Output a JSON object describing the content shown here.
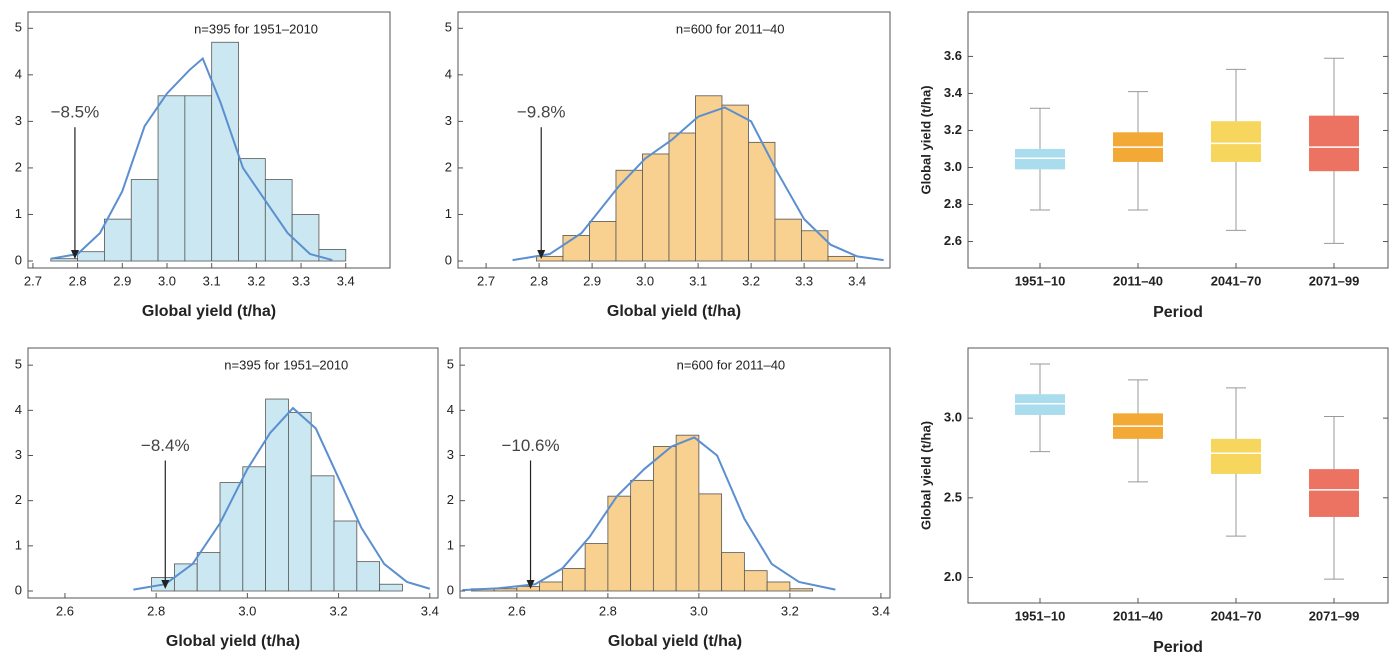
{
  "chart_data": [
    {
      "type": "histogram",
      "note": "n=395  for  1951–2010",
      "xlabel": "Global yield (t/ha)",
      "bins": [
        2.74,
        2.8,
        2.86,
        2.92,
        2.98,
        3.04,
        3.1,
        3.16,
        3.22,
        3.28,
        3.34,
        3.4
      ],
      "counts": [
        0.05,
        0.2,
        0.9,
        1.75,
        3.55,
        3.55,
        4.7,
        2.2,
        1.75,
        1.0,
        0.25
      ],
      "color": "#cbe8f2",
      "density": {
        "color": "#5b8fd0",
        "x": [
          2.74,
          2.8,
          2.85,
          2.9,
          2.95,
          3.0,
          3.05,
          3.08,
          3.12,
          3.17,
          3.22,
          3.27,
          3.32,
          3.37
        ],
        "values": [
          0.05,
          0.15,
          0.6,
          1.5,
          2.9,
          3.6,
          4.1,
          4.35,
          3.4,
          2.0,
          1.3,
          0.6,
          0.15,
          0.02
        ]
      },
      "annotation": {
        "text": "−8.5%",
        "x": 2.794
      },
      "xlim": [
        2.689,
        3.499
      ],
      "ylim": [
        -0.15,
        5.35
      ],
      "xticks": [
        2.7,
        2.8,
        2.9,
        {
          "value": 3,
          "label": "3.0"
        },
        3.1,
        3.2,
        3.3,
        3.4
      ],
      "yticks": [
        0,
        1,
        2,
        3,
        4,
        5
      ]
    },
    {
      "type": "histogram",
      "note": "n=600  for  2011–40",
      "xlabel": "Global yield (t/ha)",
      "bins": [
        2.795,
        2.845,
        2.895,
        2.945,
        2.995,
        3.045,
        3.095,
        3.145,
        3.195,
        3.245,
        3.295,
        3.345,
        3.395
      ],
      "counts": [
        0.1,
        0.55,
        0.85,
        1.95,
        2.3,
        2.75,
        3.55,
        3.35,
        2.55,
        0.9,
        0.65,
        0.1
      ],
      "color": "#f8d08f",
      "density": {
        "color": "#5b8fd0",
        "x": [
          2.75,
          2.82,
          2.88,
          2.95,
          3.0,
          3.05,
          3.1,
          3.15,
          3.2,
          3.25,
          3.3,
          3.35,
          3.4,
          3.45
        ],
        "values": [
          0.02,
          0.15,
          0.6,
          1.6,
          2.2,
          2.6,
          3.1,
          3.3,
          3.0,
          1.9,
          0.9,
          0.35,
          0.1,
          0.02
        ]
      },
      "annotation": {
        "text": "−9.8%",
        "x": 2.804
      },
      "xlim": [
        2.647,
        3.462
      ],
      "ylim": [
        -0.15,
        5.35
      ],
      "xticks": [
        2.7,
        2.8,
        2.9,
        {
          "value": 3,
          "label": "3.0"
        },
        3.1,
        3.2,
        3.3,
        3.4
      ],
      "yticks": [
        0,
        1,
        2,
        3,
        4,
        5
      ]
    },
    {
      "type": "box",
      "xlabel": "Period",
      "ylabel": "Global yield (t/ha)",
      "categories": [
        "1951–10",
        "2011–40",
        "2041–70",
        "2071–99"
      ],
      "colors": [
        "#a9dcec",
        "#f2a935",
        "#f6d65c",
        "#ec7262"
      ],
      "min": [
        2.77,
        2.77,
        2.66,
        2.59
      ],
      "q1": [
        2.99,
        3.03,
        3.03,
        2.98
      ],
      "median": [
        3.05,
        3.11,
        3.13,
        3.11
      ],
      "q3": [
        3.1,
        3.19,
        3.25,
        3.28
      ],
      "max": [
        3.32,
        3.41,
        3.53,
        3.59
      ],
      "ylim": [
        2.457,
        3.84
      ],
      "yticks": [
        2.6,
        2.8,
        {
          "value": 3,
          "label": "3.0"
        },
        3.2,
        3.4,
        3.6
      ]
    },
    {
      "type": "histogram",
      "note": "n=395  for  1951–2010",
      "xlabel": "Global yield (t/ha)",
      "bins": [
        2.79,
        2.84,
        2.89,
        2.94,
        2.99,
        3.04,
        3.09,
        3.14,
        3.19,
        3.24,
        3.29,
        3.34
      ],
      "counts": [
        0.3,
        0.6,
        0.85,
        2.4,
        2.75,
        4.25,
        3.95,
        2.55,
        1.55,
        0.65,
        0.15
      ],
      "color": "#cbe8f2",
      "density": {
        "color": "#5b8fd0",
        "x": [
          2.75,
          2.82,
          2.88,
          2.94,
          3.0,
          3.05,
          3.1,
          3.15,
          3.2,
          3.25,
          3.3,
          3.35,
          3.4
        ],
        "values": [
          0.03,
          0.15,
          0.6,
          1.5,
          2.7,
          3.5,
          4.05,
          3.6,
          2.5,
          1.4,
          0.6,
          0.2,
          0.05
        ]
      },
      "annotation": {
        "text": "−8.4%",
        "x": 2.82
      },
      "xlim": [
        2.519,
        3.418
      ],
      "ylim": [
        -0.155,
        5.38
      ],
      "xticks": [
        2.6,
        2.8,
        {
          "value": 3,
          "label": "3.0"
        },
        3.2,
        3.4
      ],
      "yticks": [
        0,
        1,
        2,
        3,
        4,
        5
      ]
    },
    {
      "type": "histogram",
      "note": "n=600  for  2011–40",
      "xlabel": "Global yield (t/ha)",
      "bins": [
        2.5,
        2.55,
        2.6,
        2.65,
        2.7,
        2.75,
        2.8,
        2.85,
        2.9,
        2.95,
        3.0,
        3.05,
        3.1,
        3.15,
        3.2,
        3.25
      ],
      "counts": [
        0.05,
        0.05,
        0.1,
        0.2,
        0.5,
        1.05,
        2.1,
        2.45,
        3.2,
        3.45,
        2.15,
        0.85,
        0.45,
        0.2,
        0.05
      ],
      "color": "#f8d08f",
      "density": {
        "color": "#5b8fd0",
        "x": [
          2.48,
          2.56,
          2.64,
          2.7,
          2.76,
          2.82,
          2.88,
          2.94,
          2.99,
          3.04,
          3.1,
          3.16,
          3.22,
          3.3
        ],
        "values": [
          0.02,
          0.06,
          0.15,
          0.5,
          1.2,
          2.1,
          2.7,
          3.2,
          3.4,
          3.0,
          1.6,
          0.6,
          0.2,
          0.03
        ]
      },
      "annotation": {
        "text": "−10.6%",
        "x": 2.63
      },
      "xlim": [
        2.475,
        3.42
      ],
      "ylim": [
        -0.155,
        5.38
      ],
      "xticks": [
        2.6,
        2.8,
        {
          "value": 3,
          "label": "3.0"
        },
        3.2,
        3.4
      ],
      "yticks": [
        0,
        1,
        2,
        3,
        4,
        5
      ]
    },
    {
      "type": "box",
      "xlabel": "Period",
      "ylabel": "Global yield (t/ha)",
      "categories": [
        "1951–10",
        "2011–40",
        "2041–70",
        "2071–99"
      ],
      "colors": [
        "#a9dcec",
        "#f2a935",
        "#f6d65c",
        "#ec7262"
      ],
      "min": [
        2.79,
        2.6,
        2.26,
        1.99
      ],
      "q1": [
        3.02,
        2.87,
        2.65,
        2.38
      ],
      "median": [
        3.09,
        2.95,
        2.78,
        2.55
      ],
      "q3": [
        3.15,
        3.03,
        2.87,
        2.68
      ],
      "max": [
        3.34,
        3.24,
        3.19,
        3.01
      ],
      "ylim": [
        1.84,
        3.44
      ],
      "yticks": [
        {
          "value": 2,
          "label": "2.0"
        },
        2.5,
        {
          "value": 3,
          "label": "3.0"
        }
      ]
    }
  ]
}
